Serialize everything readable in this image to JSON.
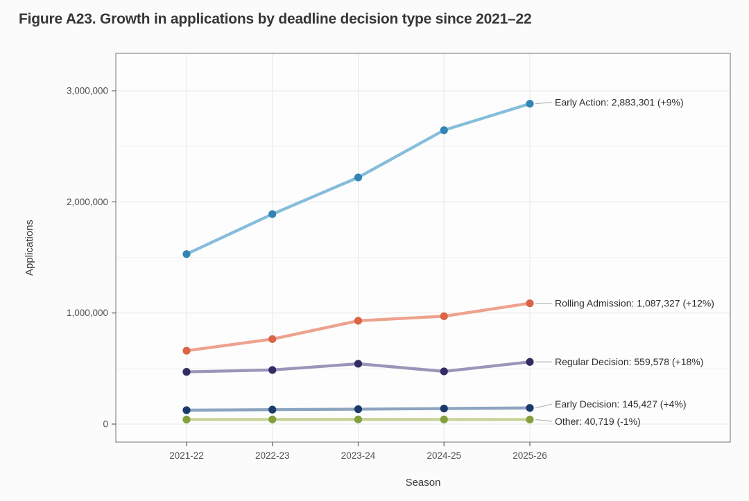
{
  "figure": {
    "title": "Figure A23. Growth in applications by deadline decision type since 2021–22"
  },
  "chart_data": {
    "type": "line",
    "title": "Figure A23. Growth in applications by deadline decision type since 2021–22",
    "xlabel": "Season",
    "ylabel": "Applications",
    "categories": [
      "2021-22",
      "2022-23",
      "2023-24",
      "2024-25",
      "2025-26"
    ],
    "ylim": [
      -162500,
      3343750
    ],
    "y_ticks": [
      {
        "value": 0,
        "label": "0"
      },
      {
        "value": 1000000,
        "label": "1,000,000"
      },
      {
        "value": 2000000,
        "label": "2,000,000"
      },
      {
        "value": 3000000,
        "label": "3,000,000"
      }
    ],
    "y_minor_ticks": [
      500000,
      1500000,
      2500000
    ],
    "grid": "on",
    "legend_position": "right-annotations",
    "series": [
      {
        "name": "Early Action",
        "annotation": "Early Action: 2,883,301 (+9%)",
        "final_value": 2883301,
        "pct_change": "+9%",
        "line_color": "#85bddb",
        "point_color": "#3385b5",
        "values": [
          1530000,
          1890000,
          2220000,
          2645230,
          2883301
        ]
      },
      {
        "name": "Rolling Admission",
        "annotation": "Rolling Admission: 1,087,327 (+12%)",
        "final_value": 1087327,
        "pct_change": "+12%",
        "line_color": "#eda28d",
        "point_color": "#db6347",
        "values": [
          660000,
          765000,
          930000,
          970828,
          1087327
        ]
      },
      {
        "name": "Regular Decision",
        "annotation": "Regular Decision: 559,578 (+18%)",
        "final_value": 559578,
        "pct_change": "+18%",
        "line_color": "#9b95b9",
        "point_color": "#312c63",
        "values": [
          470000,
          487000,
          543000,
          474219,
          559578
        ]
      },
      {
        "name": "Early Decision",
        "annotation": "Early Decision: 145,427 (+4%)",
        "final_value": 145427,
        "pct_change": "+4%",
        "line_color": "#8ca4bf",
        "point_color": "#1a3a6b",
        "values": [
          125000,
          130000,
          134000,
          139834,
          145427
        ]
      },
      {
        "name": "Other",
        "annotation": "Other: 40,719 (-1%)",
        "final_value": 40719,
        "pct_change": "-1%",
        "line_color": "#c7d399",
        "point_color": "#84a03c",
        "values": [
          40500,
          41500,
          41600,
          41130,
          40719
        ]
      }
    ],
    "colors": {
      "major_grid": "#e7e7e7",
      "minor_grid": "#f3f3f3",
      "panel_border": "#999999",
      "tick_mark": "#6b6b6b",
      "tick_label": "#4f4f4f",
      "axis_title": "#383838",
      "annotation_text": "#2d2d2d",
      "leader_line": "#b3b3b3",
      "panel_fill": "#fdfdfd"
    }
  }
}
